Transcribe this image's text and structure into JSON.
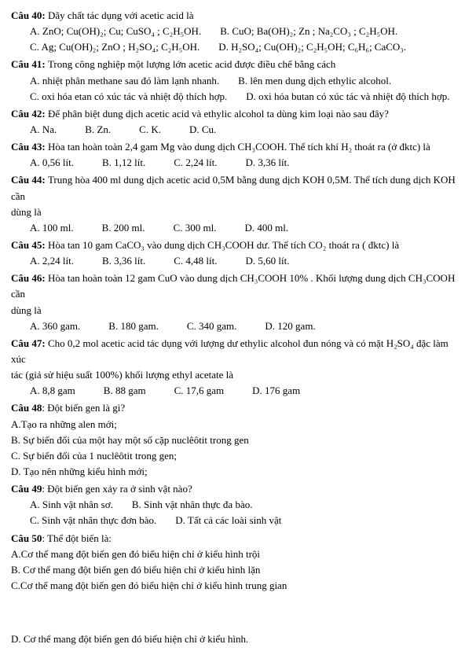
{
  "q40": {
    "stem": "Dãy chất tác dụng với acetic acid là",
    "a": "A. ZnO; Cu(OH)₂; Cu; CuSO₄ ; C₂H₅OH.",
    "b": "B. CuO; Ba(OH)₂; Zn ; Na₂CO₃ ; C₂H₅OH.",
    "c": "C. Ag; Cu(OH)₂; ZnO ; H₂SO₄; C₂H₅OH.",
    "d": "D. H₂SO₄; Cu(OH)₂; C₂H₅OH; C₆H₆; CaCO₃."
  },
  "q41": {
    "stem": "Trong công nghiệp một lượng lớn acetic acid được điều chế bằng cách",
    "a": "A. nhiệt phân methane sau đó làm lạnh nhanh.",
    "b": "B. lên men dung dịch ethylic alcohol.",
    "c": "C. oxi hóa etan có xúc tác và nhiệt độ thích hợp.",
    "d": "D. oxi hóa butan có xúc tác và nhiệt độ thích hợp."
  },
  "q42": {
    "stem": "Để phân biệt dung dịch acetic acid và ethylic alcohol ta dùng kim loại nào sau đây?",
    "a": "A. Na.",
    "b": "B. Zn.",
    "c": "C. K.",
    "d": "D. Cu."
  },
  "q43": {
    "stem": "Hòa tan hoàn toàn 2,4 gam Mg vào dung dịch CH₃COOH. Thể tích khí H₂ thoát ra (ở đktc) là",
    "a": "A. 0,56 lít.",
    "b": "B. 1,12 lít.",
    "c": "C. 2,24 lít.",
    "d": "D. 3,36 lít."
  },
  "q44": {
    "stem1": "Trung hòa 400 ml dung dịch acetic acid 0,5M bằng dung dịch KOH 0,5M. Thể tích dung dịch KOH cần",
    "stem2": "dùng là",
    "a": "A. 100 ml.",
    "b": "B. 200 ml.",
    "c": "C. 300 ml.",
    "d": "D. 400 ml."
  },
  "q45": {
    "stem": "Hòa tan 10 gam CaCO₃ vào dung dịch CH₃COOH dư. Thể tích CO₂ thoát ra ( đktc) là",
    "a": "A. 2,24 lít.",
    "b": "B. 3,36 lít.",
    "c": "C. 4,48 lít.",
    "d": "D. 5,60 lít."
  },
  "q46": {
    "stem1": "Hòa tan hoàn toàn 12 gam CuO vào dung dịch CH₃COOH 10% . Khối lượng dung dịch CH₃COOH cần",
    "stem2": "dùng là",
    "a": "A. 360 gam.",
    "b": "B. 180 gam.",
    "c": "C. 340 gam.",
    "d": "D. 120 gam."
  },
  "q47": {
    "stem1": "Cho 0,2 mol acetic acid tác dụng với lượng dư ethylic alcohol đun nóng và có mặt H₂SO₄ đặc làm xúc",
    "stem2": "tác (giả sử hiệu suất 100%) khối lượng ethyl acetate là",
    "a": "A. 8,8 gam",
    "b": "B. 88 gam",
    "c": "C. 17,6 gam",
    "d": "D. 176 gam"
  },
  "q48": {
    "stem": ": Đột biến gen là gì?",
    "a": "A.Tạo ra những alen mới;",
    "b": "B. Sự biến đổi của một hay một số cặp nuclêôtit trong gen",
    "c": "C. Sự biến đổi của 1 nuclêôtit trong gen;",
    "d": "D. Tạo nên những kiểu hình mới;"
  },
  "q49": {
    "stem": ": Đột biến gen xảy ra ở sinh vật nào?",
    "a": "A.  Sinh vật nhân sơ.",
    "b": "B. Sinh vật nhân thực đa bào.",
    "c": "C.  Sinh vật nhân thực đơn bào.",
    "d": "D. Tất cả các loài sinh vật"
  },
  "q50": {
    "stem": ": Thể đột biến là:",
    "a": "A.Cơ thể mang đột biến gen đó biểu hiện chỉ ở kiểu hình trội",
    "b": "B. Cơ thể mang đột biến gen đó biểu hiện chỉ ở kiểu hình lặn",
    "c": "C.Cơ thể mang đột biến gen đó biểu hiện chỉ ở kiểu hình trung gian",
    "d": "D. Cơ thể mang đột biến gen đó biểu hiện chỉ ở kiểu hình."
  },
  "labels": {
    "c40": "Câu 40: ",
    "c41": "Câu 41: ",
    "c42": "Câu 42: ",
    "c43": "Câu 43: ",
    "c44": "Câu 44: ",
    "c45": "Câu 45: ",
    "c46": "Câu 46: ",
    "c47": "Câu 47: ",
    "c48": "Câu 48",
    "c49": "Câu 49",
    "c50": "Câu 50"
  }
}
